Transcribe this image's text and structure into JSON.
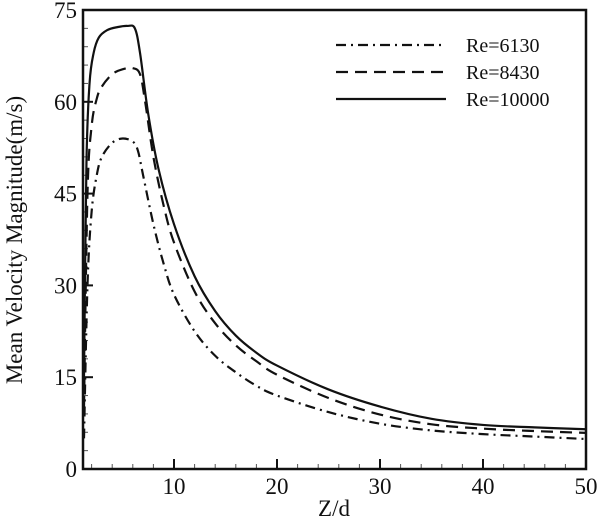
{
  "chart_data": {
    "type": "line",
    "title": "",
    "xlabel": "Z/d",
    "ylabel": "Mean Velocity Magnitude(m/s)",
    "xlim": [
      1.2,
      50
    ],
    "ylim": [
      0,
      75
    ],
    "xticks": [
      10,
      20,
      30,
      40,
      50
    ],
    "xtick_labels": [
      "10",
      "20",
      "30",
      "40",
      "50"
    ],
    "yticks": [
      0,
      15,
      30,
      45,
      60,
      75
    ],
    "ytick_labels": [
      "0",
      "15",
      "30",
      "45",
      "60",
      "75"
    ],
    "grid": false,
    "legend_position": "upper right",
    "series": [
      {
        "name": "Re=6130",
        "style": "dashdot",
        "x": [
          1.2,
          1.6,
          2.0,
          2.5,
          3.0,
          4.0,
          5.0,
          6.0,
          6.5,
          7.0,
          8.0,
          9.0,
          10.0,
          12.0,
          14.0,
          16.0,
          18.0,
          20.0,
          25.0,
          30.0,
          35.0,
          40.0,
          45.0,
          50.0
        ],
        "values": [
          5,
          30,
          42,
          48,
          51,
          53.3,
          54,
          53.5,
          52,
          48,
          40,
          33.5,
          28.5,
          22.5,
          18.5,
          15.8,
          13.6,
          12,
          9.3,
          7.4,
          6.3,
          5.7,
          5.3,
          4.9
        ]
      },
      {
        "name": "Re=8430",
        "style": "dashed",
        "x": [
          1.2,
          1.6,
          2.0,
          2.5,
          3.0,
          4.0,
          5.0,
          6.0,
          6.7,
          7.2,
          8.0,
          9.0,
          10.0,
          12.0,
          14.0,
          16.0,
          18.0,
          20.0,
          25.0,
          30.0,
          35.0,
          40.0,
          45.0,
          50.0
        ],
        "values": [
          10,
          45,
          56,
          60.5,
          62.5,
          64.5,
          65.3,
          65.5,
          64.5,
          60,
          51,
          43,
          37,
          29,
          23.8,
          20.2,
          17.6,
          15.4,
          11.6,
          8.9,
          7.3,
          6.6,
          6.2,
          5.9
        ]
      },
      {
        "name": "Re=10000",
        "style": "solid",
        "x": [
          1.2,
          1.5,
          1.8,
          2.2,
          2.7,
          3.5,
          4.5,
          5.5,
          6.2,
          6.7,
          7.5,
          8.5,
          10.0,
          12.0,
          14.0,
          16.0,
          18.0,
          20.0,
          25.0,
          30.0,
          35.0,
          40.0,
          45.0,
          50.0
        ],
        "values": [
          15,
          50,
          63,
          68,
          70.5,
          71.7,
          72.2,
          72.4,
          72,
          68,
          58,
          49,
          40,
          31.5,
          25.8,
          21.8,
          19,
          16.9,
          13,
          10.2,
          8.2,
          7.2,
          6.8,
          6.5
        ]
      }
    ]
  },
  "legend": {
    "items": [
      {
        "label": "Re=6130",
        "style": "dashdot"
      },
      {
        "label": "Re=8430",
        "style": "dashed"
      },
      {
        "label": "Re=10000",
        "style": "solid"
      }
    ]
  },
  "colors": {
    "line": "#111111",
    "background": "#ffffff"
  }
}
